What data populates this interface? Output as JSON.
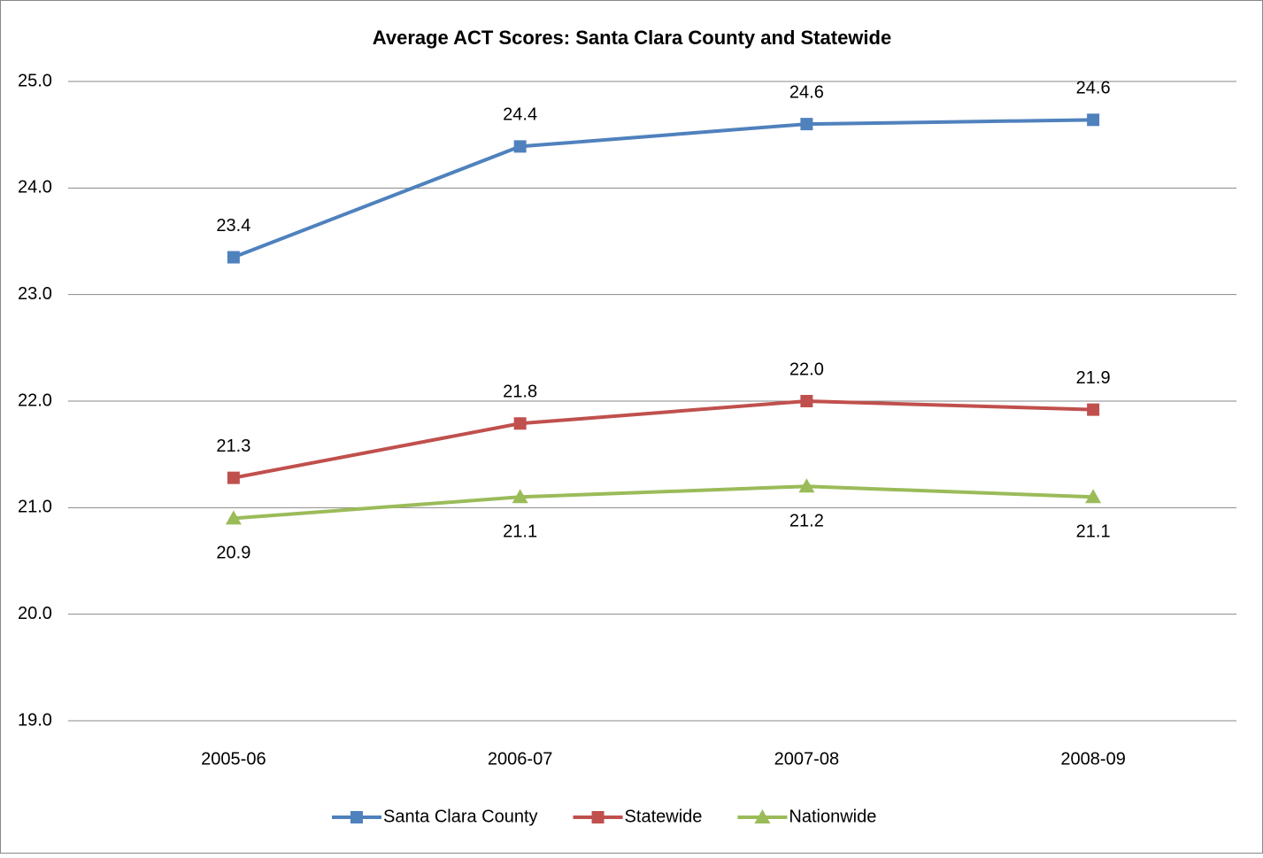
{
  "chart_data": {
    "type": "line",
    "title": "Average ACT Scores:  Santa Clara County and Statewide",
    "categories": [
      "2005-06",
      "2006-07",
      "2007-08",
      "2008-09"
    ],
    "series": [
      {
        "name": "Santa Clara County",
        "color": "#4f81bd",
        "marker": "square",
        "values": [
          23.35,
          24.39,
          24.6,
          24.64
        ],
        "value_labels": [
          "23.4",
          "24.4",
          "24.6",
          "24.6"
        ]
      },
      {
        "name": "Statewide",
        "color": "#c0504d",
        "marker": "square",
        "values": [
          21.28,
          21.79,
          22.0,
          21.92
        ],
        "value_labels": [
          "21.3",
          "21.8",
          "22.0",
          "21.9"
        ]
      },
      {
        "name": "Nationwide",
        "color": "#9bbb59",
        "marker": "triangle",
        "values": [
          20.9,
          21.1,
          21.2,
          21.1
        ],
        "value_labels": [
          "20.9",
          "21.1",
          "21.2",
          "21.1"
        ]
      }
    ],
    "ylim": [
      19,
      25
    ],
    "yticks": [
      {
        "value": 19,
        "label": "19.0"
      },
      {
        "value": 20,
        "label": "20.0"
      },
      {
        "value": 21,
        "label": "21.0"
      },
      {
        "value": 22,
        "label": "22.0"
      },
      {
        "value": 23,
        "label": "23.0"
      },
      {
        "value": 24,
        "label": "24.0"
      },
      {
        "value": 25,
        "label": "25.0"
      }
    ],
    "grid": true,
    "legend": "bottom"
  }
}
